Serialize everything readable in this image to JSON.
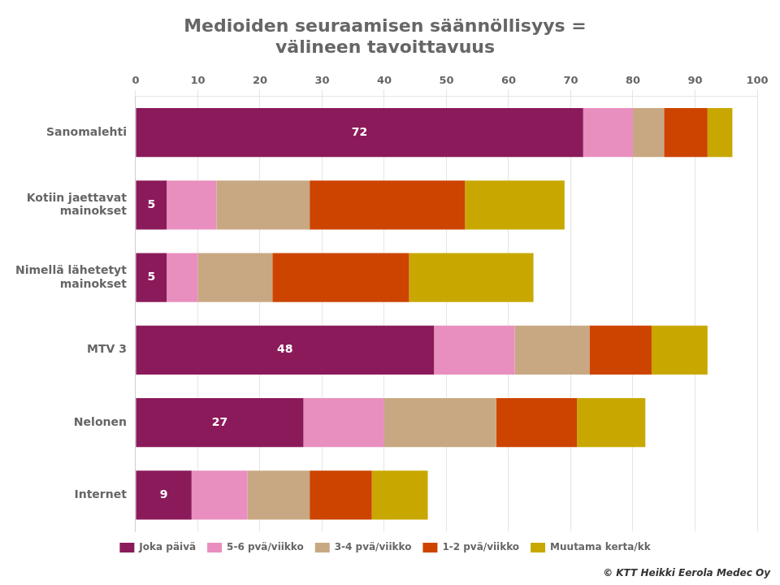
{
  "chart_data": {
    "type": "bar",
    "orientation": "horizontal",
    "stacked": true,
    "title": "Medioiden seuraamisen säännöllisyys =\nvälineen tavoittavuus",
    "categories": [
      "Sanomalehti",
      "Kotiin jaettavat\nmainokset",
      "Nimellä lähetetyt\nmainokset",
      "MTV 3",
      "Nelonen",
      "Internet"
    ],
    "series": [
      {
        "name": "Joka päivä",
        "color": "#8B1A5A",
        "values": [
          72,
          5,
          5,
          48,
          27,
          9
        ],
        "data_labels": true
      },
      {
        "name": "5-6 pvä/viikko",
        "color": "#E88FBF",
        "values": [
          8,
          8,
          5,
          13,
          13,
          9
        ]
      },
      {
        "name": "3-4 pvä/viikko",
        "color": "#C8A882",
        "values": [
          5,
          15,
          12,
          12,
          18,
          10
        ]
      },
      {
        "name": "1-2 pvä/viikko",
        "color": "#CC4400",
        "values": [
          7,
          25,
          22,
          10,
          13,
          10
        ]
      },
      {
        "name": "Muutama kerta/kk",
        "color": "#C8A800",
        "values": [
          4,
          16,
          20,
          9,
          11,
          9
        ]
      }
    ],
    "xlim": [
      0,
      100
    ],
    "xticks": [
      0,
      10,
      20,
      30,
      40,
      50,
      60,
      70,
      80,
      90,
      100
    ],
    "grid": true,
    "legend": "bottom",
    "annotations": [
      "© KTT Heikki Eerola Medec Oy"
    ]
  }
}
